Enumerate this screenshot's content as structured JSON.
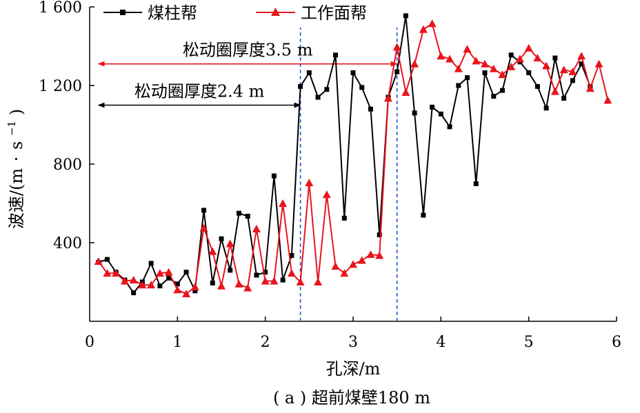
{
  "chart_data": {
    "type": "line",
    "caption": "( a ) 超前煤壁180 m",
    "xlabel": "孔深/m",
    "ylabel": "波速/(m·s⁻¹)",
    "ylabel_main": "波速/(m",
    "ylabel_dot": "·",
    "ylabel_s": "s",
    "ylabel_sup": "−1",
    "ylabel_close": ")",
    "xlim": [
      0,
      6
    ],
    "ylim": [
      0,
      1600
    ],
    "xticks": [
      0,
      1,
      2,
      3,
      4,
      5,
      6
    ],
    "xtick_labels": [
      "0",
      "1",
      "2",
      "3",
      "4",
      "5",
      "6"
    ],
    "yticks": [
      400,
      800,
      1200,
      1600
    ],
    "ytick_labels": [
      "400",
      "800",
      "1 200",
      "1 600"
    ],
    "grid": false,
    "legend_position": "top-left",
    "series": [
      {
        "name": "煤柱帮",
        "color": "#000000",
        "marker": "square",
        "x": [
          0.1,
          0.2,
          0.3,
          0.4,
          0.5,
          0.6,
          0.7,
          0.8,
          0.9,
          1.0,
          1.1,
          1.2,
          1.3,
          1.4,
          1.5,
          1.6,
          1.7,
          1.8,
          1.9,
          2.0,
          2.1,
          2.2,
          2.3,
          2.4,
          2.5,
          2.6,
          2.7,
          2.8,
          2.9,
          3.0,
          3.1,
          3.2,
          3.3,
          3.4,
          3.5,
          3.6,
          3.7,
          3.8,
          3.9,
          4.0,
          4.1,
          4.2,
          4.3,
          4.4,
          4.5,
          4.6,
          4.7,
          4.8,
          4.9,
          5.0,
          5.1,
          5.2,
          5.3,
          5.4,
          5.5,
          5.6,
          5.7
        ],
        "y": [
          300,
          315,
          250,
          210,
          145,
          200,
          295,
          180,
          220,
          190,
          250,
          155,
          565,
          195,
          420,
          260,
          550,
          535,
          235,
          250,
          740,
          210,
          335,
          1195,
          1265,
          1140,
          1180,
          1355,
          525,
          1265,
          1190,
          1080,
          440,
          1140,
          1270,
          1555,
          1060,
          540,
          1090,
          1055,
          990,
          1200,
          1240,
          700,
          1265,
          1145,
          1175,
          1355,
          1320,
          1265,
          1195,
          1085,
          1340,
          1135,
          1225,
          1310,
          1195
        ]
      },
      {
        "name": "工作面帮",
        "color": "#e8141c",
        "marker": "triangle",
        "x": [
          0.1,
          0.2,
          0.3,
          0.4,
          0.5,
          0.6,
          0.7,
          0.8,
          0.9,
          1.0,
          1.1,
          1.2,
          1.3,
          1.4,
          1.5,
          1.6,
          1.7,
          1.8,
          1.9,
          2.0,
          2.1,
          2.2,
          2.3,
          2.4,
          2.5,
          2.6,
          2.7,
          2.8,
          2.9,
          3.0,
          3.1,
          3.2,
          3.3,
          3.4,
          3.5,
          3.6,
          3.7,
          3.8,
          3.9,
          4.0,
          4.1,
          4.2,
          4.3,
          4.4,
          4.5,
          4.6,
          4.7,
          4.8,
          4.9,
          5.0,
          5.1,
          5.2,
          5.3,
          5.4,
          5.5,
          5.6,
          5.7,
          5.8,
          5.9
        ],
        "y": [
          305,
          245,
          245,
          205,
          210,
          185,
          185,
          245,
          250,
          160,
          140,
          175,
          475,
          355,
          180,
          395,
          190,
          170,
          470,
          205,
          205,
          600,
          245,
          200,
          705,
          200,
          645,
          280,
          245,
          290,
          310,
          340,
          335,
          1135,
          1395,
          1165,
          1310,
          1485,
          1515,
          1350,
          1335,
          1285,
          1385,
          1325,
          1310,
          1285,
          1255,
          1295,
          1335,
          1390,
          1340,
          1300,
          1170,
          1280,
          1270,
          1350,
          1185,
          1310,
          1125
        ]
      }
    ],
    "annotations": [
      {
        "text": "松动圈厚度2.4 m",
        "x_start": 0.1,
        "x_end": 2.4,
        "y": 1100
      },
      {
        "text": "松动圈厚度3.5 m",
        "x_start": 0.1,
        "x_end": 3.5,
        "y": 1310
      }
    ],
    "reference_lines": [
      {
        "x": 2.4,
        "color": "#1f4fe0",
        "style": "dashed"
      },
      {
        "x": 3.5,
        "color": "#1f4fe0",
        "style": "dashed"
      }
    ]
  }
}
